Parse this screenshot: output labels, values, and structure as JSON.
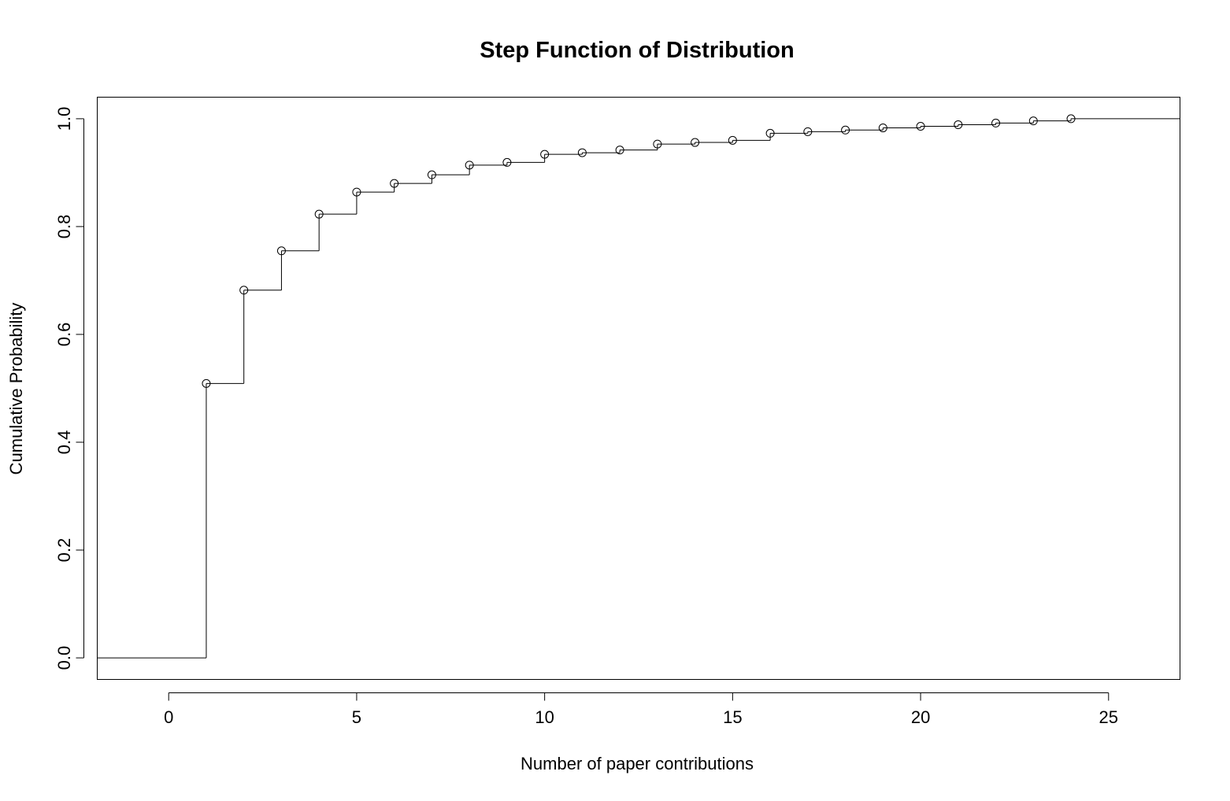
{
  "chart_data": {
    "type": "line",
    "subtype": "step",
    "title": "Step Function of Distribution",
    "xlabel": "Number of paper contributions",
    "ylabel": "Cumulative Probability",
    "xlim": [
      -1.9,
      26.9
    ],
    "ylim": [
      -0.04,
      1.04
    ],
    "x_ticks": [
      0,
      5,
      10,
      15,
      20,
      25
    ],
    "y_ticks": [
      0.0,
      0.2,
      0.4,
      0.6,
      0.8,
      1.0
    ],
    "x_tick_labels": [
      "0",
      "5",
      "10",
      "15",
      "20",
      "25"
    ],
    "y_tick_labels": [
      "0.0",
      "0.2",
      "0.4",
      "0.6",
      "0.8",
      "1.0"
    ],
    "grid": false,
    "legend": "none",
    "series": [
      {
        "x": [
          1,
          2,
          3,
          4,
          5,
          6,
          7,
          8,
          9,
          10,
          11,
          12,
          13,
          14,
          15,
          16,
          17,
          18,
          19,
          20,
          21,
          22,
          23,
          24
        ],
        "y": [
          0.509,
          0.682,
          0.755,
          0.823,
          0.864,
          0.88,
          0.896,
          0.914,
          0.919,
          0.934,
          0.937,
          0.942,
          0.953,
          0.956,
          0.96,
          0.973,
          0.976,
          0.979,
          0.983,
          0.986,
          0.989,
          0.992,
          0.996,
          1.0
        ]
      }
    ],
    "colors": {
      "line": "#000000",
      "points": "#000000",
      "background": "#ffffff"
    }
  }
}
